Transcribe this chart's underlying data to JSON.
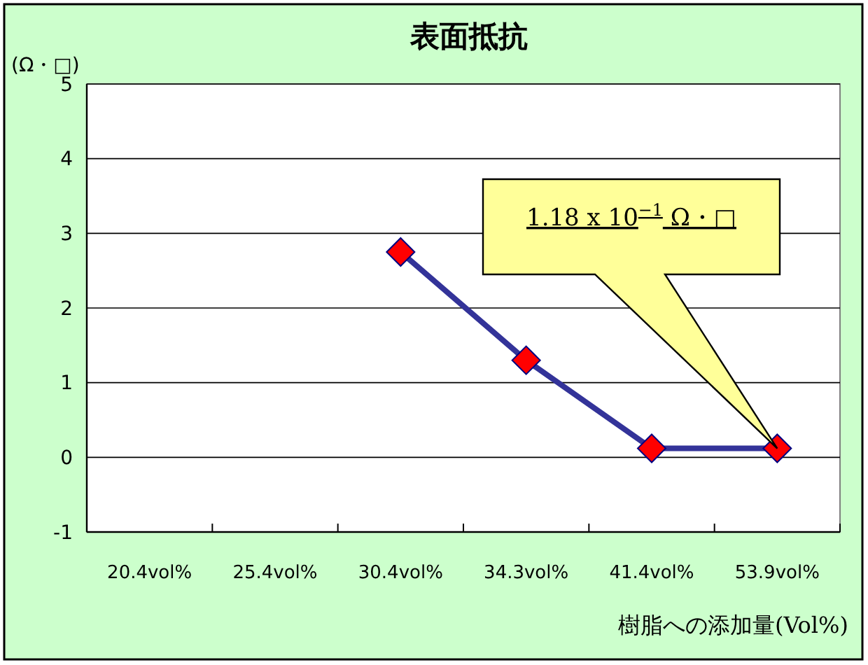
{
  "chart_data": {
    "type": "line",
    "title": "表面抵抗",
    "ylabel": "(Ω・□)",
    "xlabel": "樹脂への添加量(Vol%)",
    "categories": [
      "20.4vol%",
      "25.4vol%",
      "30.4vol%",
      "34.3vol%",
      "41.4vol%",
      "53.9vol%"
    ],
    "series": [
      {
        "color": "#333399",
        "values": [
          null,
          null,
          2.75,
          1.3,
          0.12,
          0.12
        ]
      }
    ],
    "marker": "diamond",
    "line_style": "solid",
    "grid": "y",
    "ylim": [
      -1,
      5
    ],
    "yticks": [
      -1,
      0,
      1,
      2,
      3,
      4,
      5
    ],
    "annotations": [
      "1.18 x 10$^{−1}$  Ω・□"
    ]
  }
}
